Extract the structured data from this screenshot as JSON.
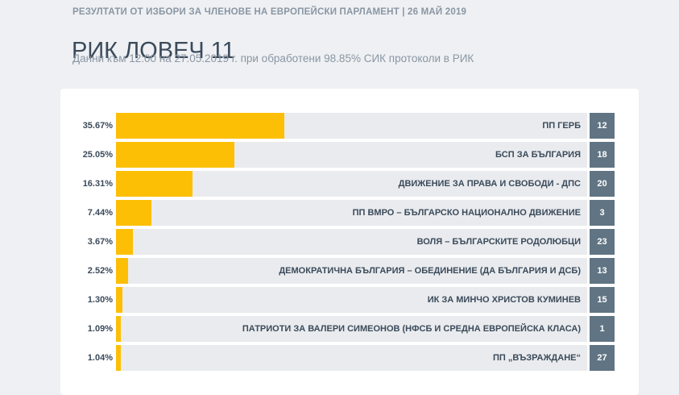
{
  "header": {
    "election_title": "РЕЗУЛТАТИ ОТ ИЗБОРИ ЗА ЧЛЕНОВЕ НА ЕВРОПЕЙСКИ ПАРЛАМЕНТ | 26 МАЙ 2019",
    "region": "РИК ЛОВЕЧ 11",
    "data_info": "Данни към 12:00 на 27.05.2019 г. при обработени 98.85% СИК протоколи в РИК"
  },
  "colors": {
    "bar": "#fcbf05",
    "track": "#e9ebee",
    "badge": "#607483"
  },
  "chart_data": {
    "type": "bar",
    "orientation": "horizontal",
    "categories": [
      "ПП ГЕРБ",
      "БСП ЗА БЪЛГАРИЯ",
      "ДВИЖЕНИЕ ЗА ПРАВА И СВОБОДИ - ДПС",
      "ПП ВМРО – БЪЛГАРСКО НАЦИОНАЛНО ДВИЖЕНИЕ",
      "ВОЛЯ – БЪЛГАРСКИТЕ РОДОЛЮБЦИ",
      "ДЕМОКРАТИЧНА БЪЛГАРИЯ – ОБЕДИНЕНИЕ (ДА БЪЛГАРИЯ И ДСБ)",
      "ИК ЗА МИНЧО ХРИСТОВ КУМИНЕВ",
      "ПАТРИОТИ ЗА ВАЛЕРИ СИМЕОНОВ (НФСБ И СРЕДНА ЕВРОПЕЙСКА КЛАСА)",
      "ПП „ВЪЗРАЖДАНЕ“"
    ],
    "values": [
      35.67,
      25.05,
      16.31,
      7.44,
      3.67,
      2.52,
      1.3,
      1.09,
      1.04
    ],
    "value_labels": [
      "35.67%",
      "25.05%",
      "16.31%",
      "7.44%",
      "3.67%",
      "2.52%",
      "1.30%",
      "1.09%",
      "1.04%"
    ],
    "ballot_numbers": [
      "12",
      "18",
      "20",
      "3",
      "23",
      "13",
      "15",
      "1",
      "27"
    ],
    "xlim": [
      0,
      100
    ]
  }
}
